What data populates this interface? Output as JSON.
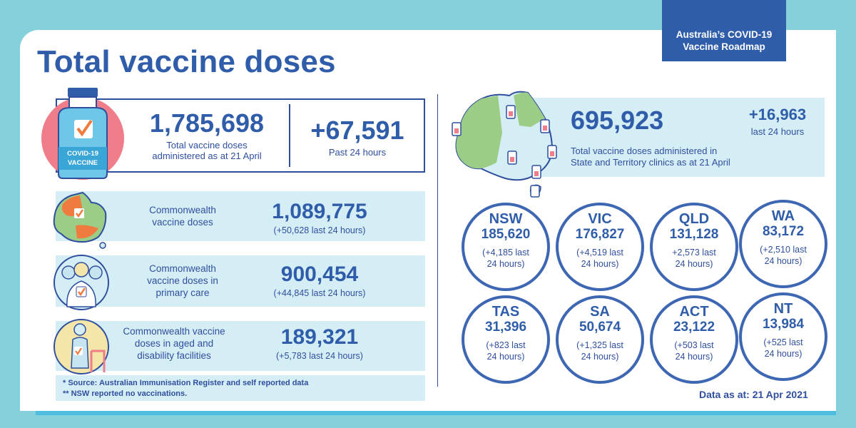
{
  "header": {
    "title": "Total vaccine doses",
    "roadmap_line1": "Australia’s COVID-19",
    "roadmap_line2": "Vaccine Roadmap"
  },
  "total": {
    "value": "1,785,698",
    "label_line1": "Total vaccine doses",
    "label_line2": "administered as at 21 April",
    "past24_value": "+67,591",
    "past24_label": "Past 24 hours",
    "icon_text1": "COVID-19",
    "icon_text2": "VACCINE"
  },
  "rows": [
    {
      "label_lines": [
        "Commonwealth",
        "vaccine doses"
      ],
      "value": "1,089,775",
      "sub": "(+50,628 last 24 hours)"
    },
    {
      "label_lines": [
        "Commonwealth",
        "vaccine doses in",
        "primary care"
      ],
      "value": "900,454",
      "sub": "(+44,845 last 24 hours)"
    },
    {
      "label_lines": [
        "Commonwealth vaccine",
        "doses in aged and",
        "disability facilities"
      ],
      "value": "189,321",
      "sub": "(+5,783 last 24 hours)"
    }
  ],
  "notes": {
    "line1": "*  Source: Australian Immunisation Register and self reported data",
    "line2": "** NSW reported no vaccinations."
  },
  "state_total": {
    "value": "695,923",
    "label_line1": "Total vaccine doses administered in",
    "label_line2": "State and Territory clinics as at 21 April",
    "plus": "+16,963",
    "plus_label": "last 24 hours"
  },
  "states": [
    {
      "name": "NSW",
      "value": "185,620",
      "sub1": "(+4,185 last",
      "sub2": "24 hours)"
    },
    {
      "name": "VIC",
      "value": "176,827",
      "sub1": "(+4,519 last",
      "sub2": "24 hours)"
    },
    {
      "name": "QLD",
      "value": "131,128",
      "sub1": "+2,573 last",
      "sub2": "24 hours)"
    },
    {
      "name": "WA",
      "value": "83,172",
      "sub1": "(+2,510 last",
      "sub2": "24 hours)"
    },
    {
      "name": "TAS",
      "value": "31,396",
      "sub1": "(+823 last",
      "sub2": "24 hours)"
    },
    {
      "name": "SA",
      "value": "50,674",
      "sub1": "(+1,325 last",
      "sub2": "24 hours)"
    },
    {
      "name": "ACT",
      "value": "23,122",
      "sub1": "(+503 last",
      "sub2": "24 hours)"
    },
    {
      "name": "NT",
      "value": "13,984",
      "sub1": "(+525 last",
      "sub2": "24 hours)"
    }
  ],
  "footer": {
    "data_as_at": "Data as at: 21 Apr 2021"
  },
  "colors": {
    "background": "#84d1dc",
    "navy": "#2f5daa",
    "band": "#d5eef5",
    "pink": "#ef7d8a",
    "orange": "#f07b3f",
    "green": "#9ccd87",
    "tan": "#f4e6a8"
  }
}
